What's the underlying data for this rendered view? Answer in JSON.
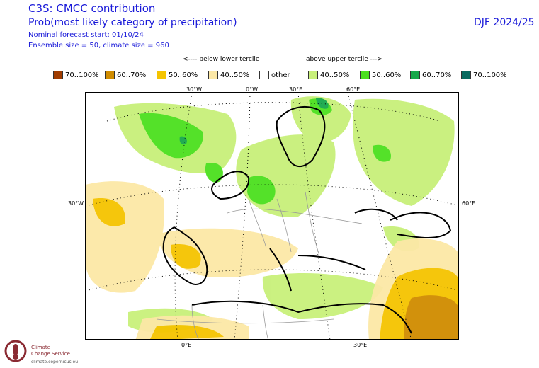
{
  "header": {
    "title": "C3S: CMCC contribution",
    "subtitle": "Prob(most likely category of precipitation)",
    "forecast_start": "Nominal forecast start: 01/10/24",
    "ensemble": "Ensemble size = 50, climate size = 960",
    "season": "DJF 2024/25"
  },
  "tercile_labels": {
    "below": "<---- below lower tercile",
    "above": "above upper tercile --->"
  },
  "legend": [
    {
      "label": "70..100%",
      "color": "#a03c00"
    },
    {
      "label": "60..70%",
      "color": "#d08c00"
    },
    {
      "label": "50..60%",
      "color": "#f5c400"
    },
    {
      "label": "40..50%",
      "color": "#fce8a6"
    },
    {
      "label": "other",
      "color": "#ffffff"
    },
    {
      "label": "40..50%",
      "color": "#c8f07a"
    },
    {
      "label": "50..60%",
      "color": "#4be01e"
    },
    {
      "label": "60..70%",
      "color": "#17a84a"
    },
    {
      "label": "70..100%",
      "color": "#0a6b60"
    }
  ],
  "axis_labels": {
    "top": [
      "30°W",
      "0°W",
      "30°E",
      "60°E"
    ],
    "left": "30°W",
    "right": "60°E",
    "bottom": [
      "0°E",
      "30°E"
    ]
  },
  "logo": {
    "line1": "Climate",
    "line2": "Change Service",
    "url": "climate.copernicus.eu"
  }
}
